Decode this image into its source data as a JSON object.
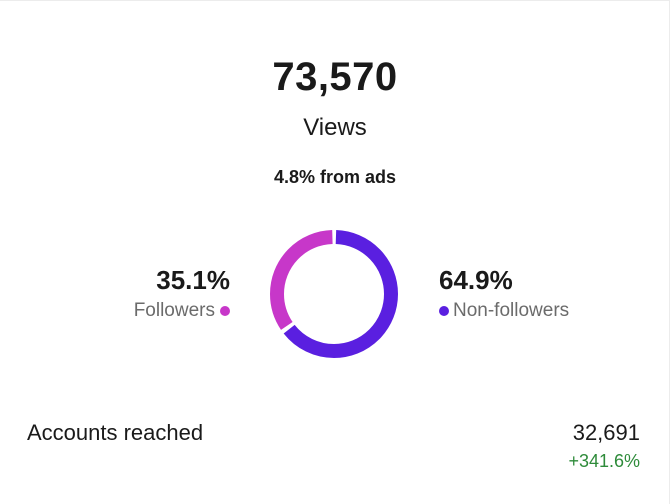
{
  "summary": {
    "total_value": "73,570",
    "total_label": "Views",
    "ads_note": "4.8% from ads"
  },
  "breakdown": {
    "followers": {
      "percent_label": "35.1%",
      "label": "Followers",
      "share": 35.1,
      "color": "#c737c9"
    },
    "non_followers": {
      "percent_label": "64.9%",
      "label": "Non-followers",
      "share": 64.9,
      "color": "#5a1fe0"
    }
  },
  "metrics": {
    "accounts_reached": {
      "label": "Accounts reached",
      "value": "32,691",
      "change": "+341.6%",
      "change_color": "#2e8b3a"
    }
  }
}
